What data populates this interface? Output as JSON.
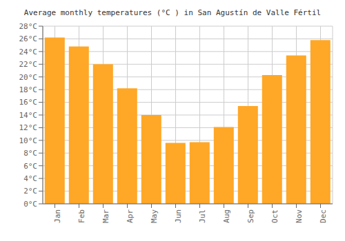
{
  "chart_data": {
    "type": "bar",
    "title": "Average monthly temperatures (°C ) in San Agustín de Valle Fértil",
    "categories": [
      "Jan",
      "Feb",
      "Mar",
      "Apr",
      "May",
      "Jun",
      "Jul",
      "Aug",
      "Sep",
      "Oct",
      "Nov",
      "Dec"
    ],
    "values": [
      26.2,
      24.8,
      22.0,
      18.2,
      14.0,
      9.6,
      9.7,
      12.1,
      15.4,
      20.3,
      23.4,
      25.8
    ],
    "color": "#FFA726",
    "ylim": [
      0,
      28
    ],
    "yticks": [
      {
        "value": 0,
        "label": "0°C"
      },
      {
        "value": 2,
        "label": "2°C"
      },
      {
        "value": 4,
        "label": "4°C"
      },
      {
        "value": 6,
        "label": "6°C"
      },
      {
        "value": 8,
        "label": "8°C"
      },
      {
        "value": 10,
        "label": "10°C"
      },
      {
        "value": 12,
        "label": "12°C"
      },
      {
        "value": 14,
        "label": "14°C"
      },
      {
        "value": 16,
        "label": "16°C"
      },
      {
        "value": 18,
        "label": "18°C"
      },
      {
        "value": 20,
        "label": "20°C"
      },
      {
        "value": 22,
        "label": "22°C"
      },
      {
        "value": 24,
        "label": "24°C"
      },
      {
        "value": 26,
        "label": "26°C"
      },
      {
        "value": 28,
        "label": "28°C"
      }
    ],
    "grid": true
  }
}
